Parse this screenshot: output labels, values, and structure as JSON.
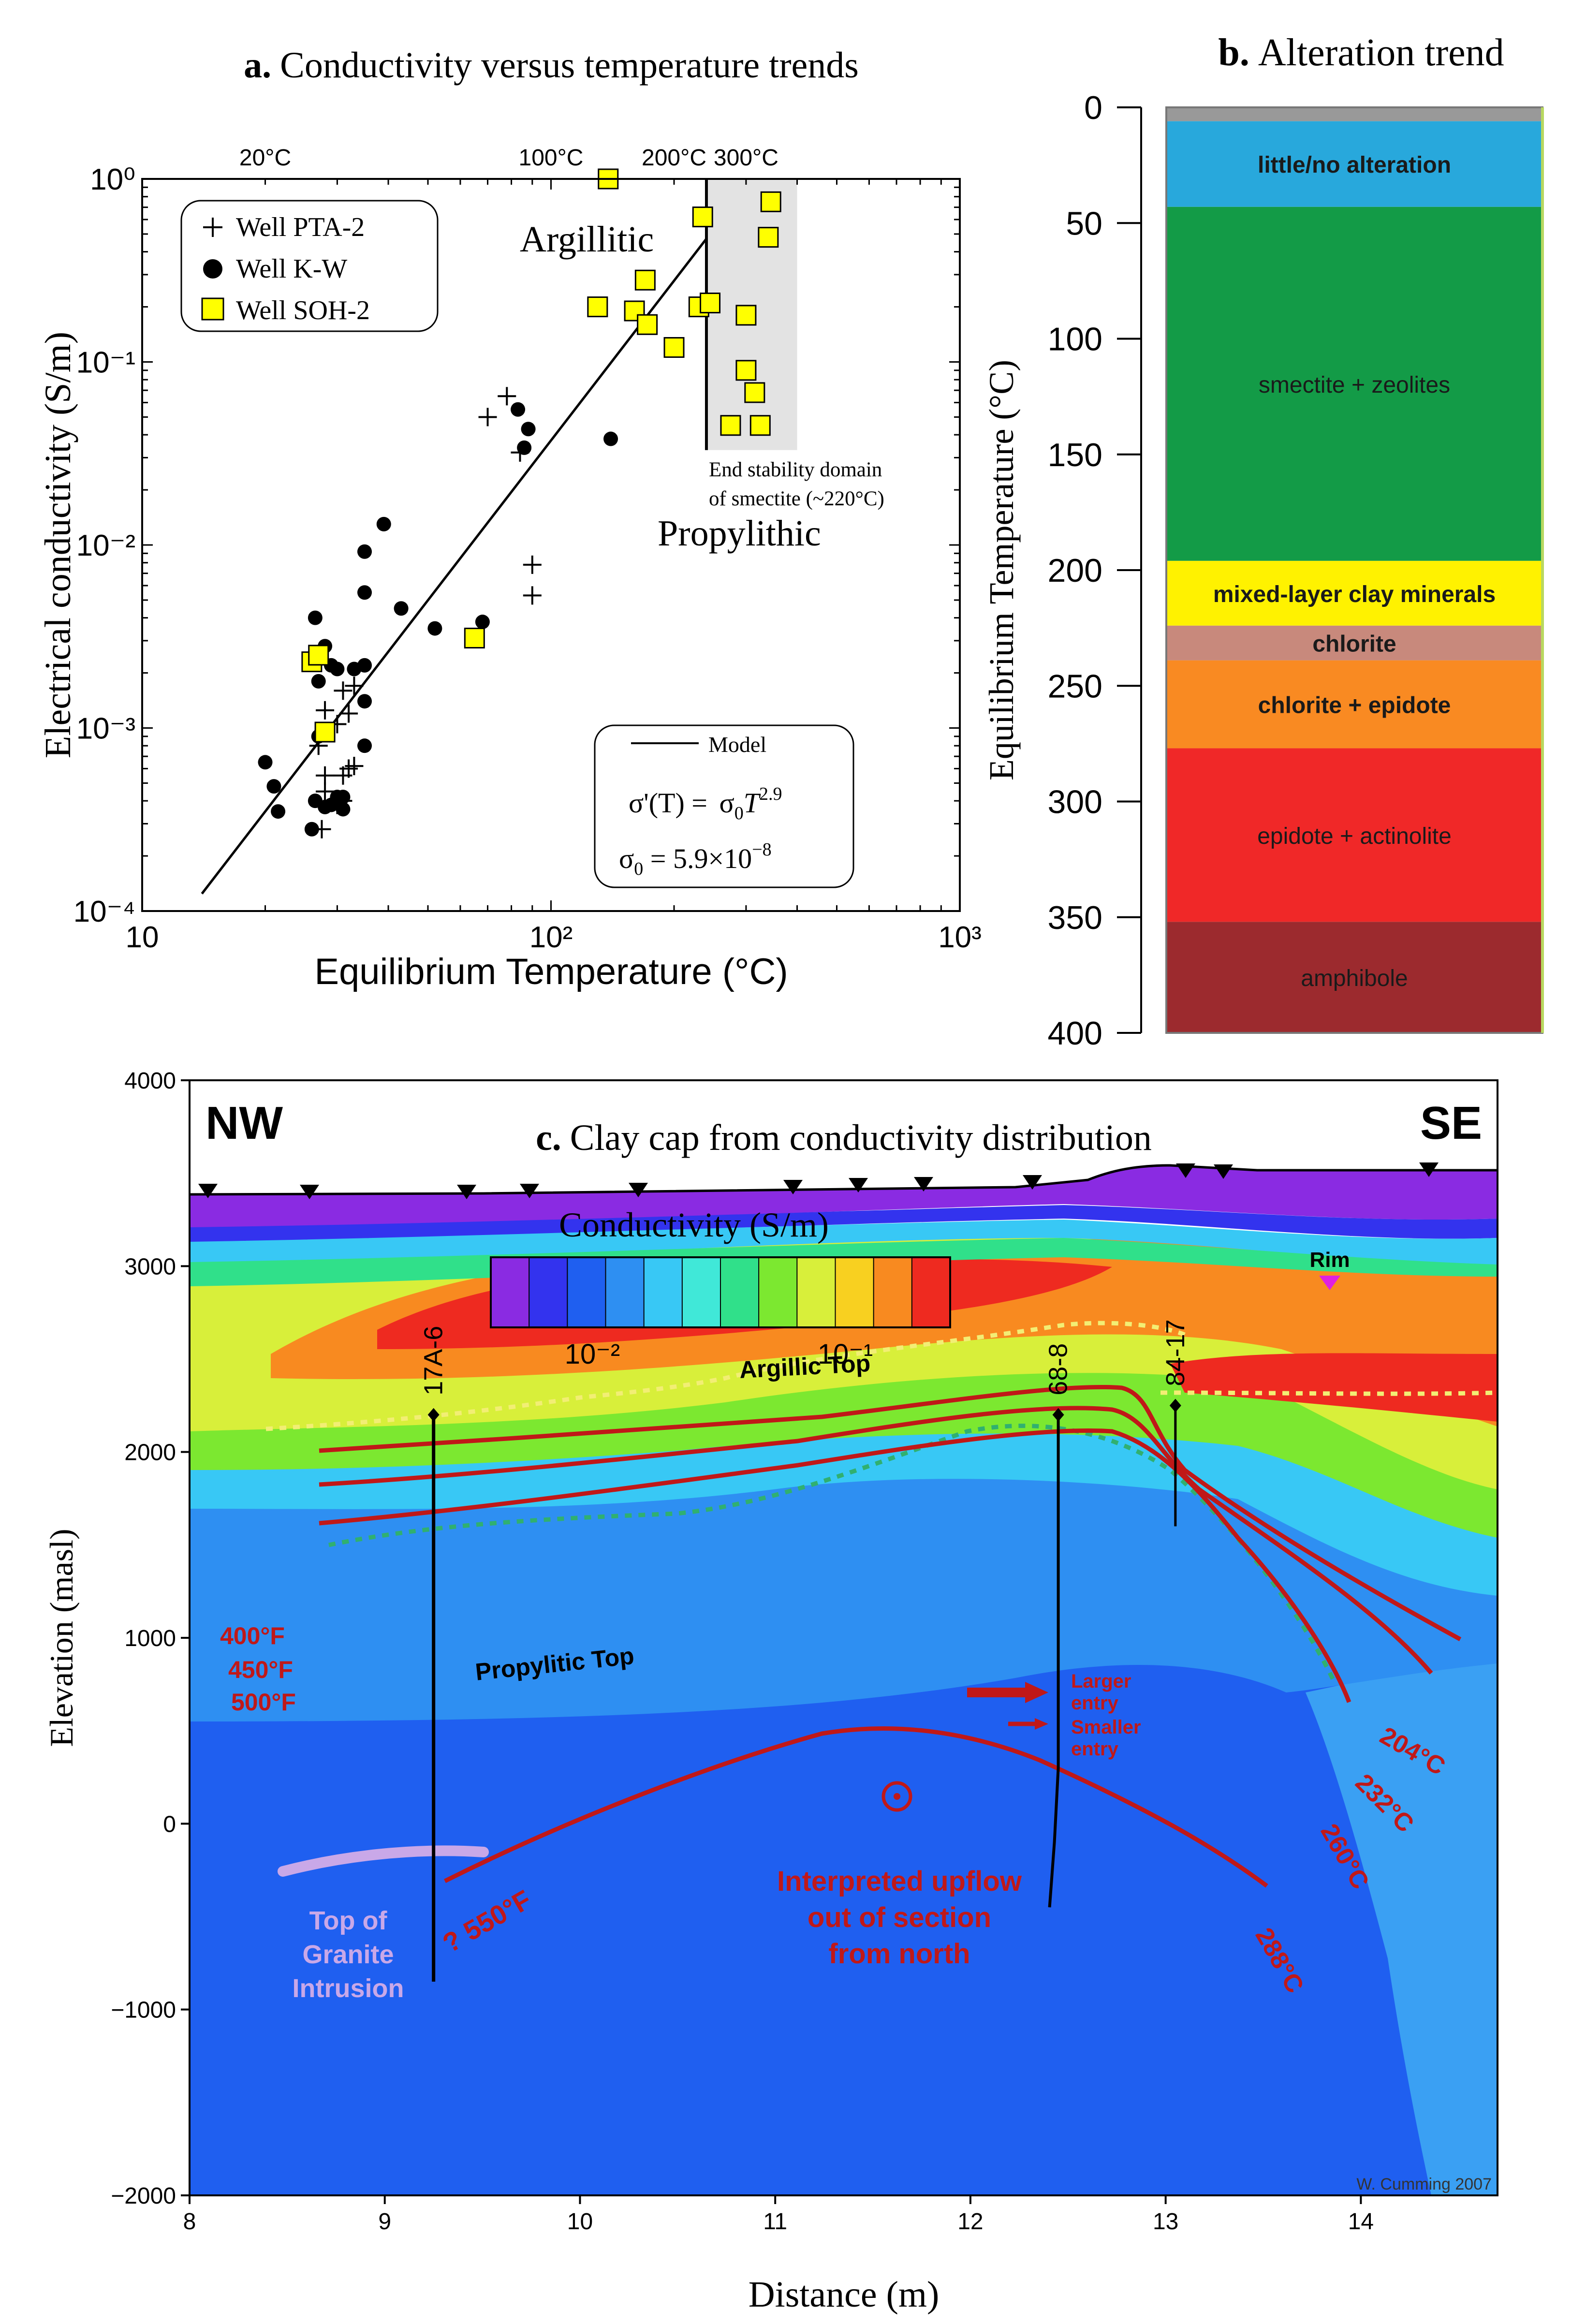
{
  "chart_data": [
    {
      "panel": "a",
      "type": "scatter",
      "title_letter": "a.",
      "title": "Conductivity versus temperature trends",
      "xlabel": "Equilibrium Temperature (°C)",
      "ylabel": "Electrical conductivity (S/m)",
      "xscale": "log",
      "yscale": "log",
      "xlim": [
        10,
        1000
      ],
      "ylim": [
        0.0001,
        1
      ],
      "x_tick_labels": [
        "10",
        "10²",
        "10³"
      ],
      "y_tick_labels": [
        "10⁻⁴",
        "10⁻³",
        "10⁻²",
        "10⁻¹",
        "10⁰"
      ],
      "top_labels": [
        {
          "text": "20°C",
          "at": 20
        },
        {
          "text": "100°C",
          "at": 100
        },
        {
          "text": "200°C",
          "at": 200
        },
        {
          "text": "300°C",
          "at": 300
        }
      ],
      "legend": [
        {
          "name": "Well PTA-2",
          "marker": "plus",
          "color": "#000000"
        },
        {
          "name": "Well K-W",
          "marker": "dot",
          "color": "#000000"
        },
        {
          "name": "Well SOH-2",
          "marker": "square",
          "color": "#ffff00"
        }
      ],
      "series": [
        {
          "name": "Well PTA-2",
          "points": [
            [
              27.5,
              0.00028
            ],
            [
              28,
              0.00045
            ],
            [
              28,
              0.00055
            ],
            [
              27,
              0.0008
            ],
            [
              28,
              0.00125
            ],
            [
              30,
              0.00105
            ],
            [
              31,
              0.0016
            ],
            [
              32,
              0.0012
            ],
            [
              33,
              0.0017
            ],
            [
              32,
              0.0006
            ],
            [
              31,
              0.00055
            ],
            [
              33,
              0.00062
            ],
            [
              30,
              0.00038
            ],
            [
              31,
              0.0004
            ],
            [
              70,
              0.05
            ],
            [
              78,
              0.065
            ],
            [
              84,
              0.032
            ],
            [
              90,
              0.0078
            ],
            [
              90,
              0.0053
            ]
          ]
        },
        {
          "name": "Well K-W",
          "points": [
            [
              20,
              0.00065
            ],
            [
              21,
              0.00048
            ],
            [
              21.5,
              0.00035
            ],
            [
              26,
              0.00028
            ],
            [
              26.5,
              0.0004
            ],
            [
              28,
              0.00037
            ],
            [
              29,
              0.00038
            ],
            [
              31,
              0.00036
            ],
            [
              30,
              0.00042
            ],
            [
              31,
              0.00042
            ],
            [
              27,
              0.0009
            ],
            [
              30,
              0.0021
            ],
            [
              27,
              0.0018
            ],
            [
              26.5,
              0.004
            ],
            [
              28,
              0.0028
            ],
            [
              29,
              0.0022
            ],
            [
              33,
              0.0021
            ],
            [
              35,
              0.0022
            ],
            [
              35,
              0.0014
            ],
            [
              35,
              0.0008
            ],
            [
              43,
              0.0045
            ],
            [
              35,
              0.0055
            ],
            [
              35,
              0.0092
            ],
            [
              39,
              0.013
            ],
            [
              52,
              0.0035
            ],
            [
              68,
              0.0038
            ],
            [
              83,
              0.055
            ],
            [
              88,
              0.043
            ],
            [
              86,
              0.034
            ],
            [
              140,
              0.038
            ]
          ]
        },
        {
          "name": "Well SOH-2",
          "points": [
            [
              26,
              0.0023
            ],
            [
              27,
              0.0025
            ],
            [
              28,
              0.00095
            ],
            [
              65,
              0.0031
            ],
            [
              138,
              1.0
            ],
            [
              130,
              0.2
            ],
            [
              160,
              0.19
            ],
            [
              172,
              0.16
            ],
            [
              170,
              0.28
            ],
            [
              200,
              0.12
            ],
            [
              230,
              0.2
            ],
            [
              245,
              0.21
            ],
            [
              235,
              0.62
            ],
            [
              300,
              0.18
            ],
            [
              300,
              0.09
            ],
            [
              315,
              0.068
            ],
            [
              275,
              0.045
            ],
            [
              325,
              0.045
            ],
            [
              345,
              0.75
            ],
            [
              340,
              0.48
            ]
          ]
        }
      ],
      "model": {
        "legend_label": "Model",
        "equation_lhs": "σ'(T) = ",
        "equation_rhs": "σ",
        "equation_sub": "0",
        "equation_T": "T",
        "equation_exp": "2.9",
        "sigma0_lhs": "σ",
        "sigma0_sub": "0",
        "sigma0_rhs": " = 5.9×10",
        "sigma0_exp": "−8",
        "sigma0": 5.9e-08,
        "exponent": 2.9,
        "line_from_T": 14,
        "line_to_T": 240
      },
      "smectite_limit_T": 240,
      "shaded_T_range": [
        240,
        400
      ],
      "shaded_sigma_range": [
        0.033,
        1
      ],
      "annotations": {
        "argillitic": "Argillitic",
        "propylithic": "Propylithic",
        "end_stability_line1": "End stability domain",
        "end_stability_line2": "of smectite (~220°C)"
      }
    },
    {
      "panel": "b",
      "type": "bar",
      "title_letter": "b.",
      "title": "Alteration trend",
      "ylabel": "Equilibrium Temperature (°C)",
      "ylim": [
        0,
        400
      ],
      "y_ticks": [
        0,
        50,
        100,
        150,
        200,
        250,
        300,
        350,
        400
      ],
      "zones": [
        {
          "label": "",
          "from": 0,
          "to": 6,
          "color": "#999999"
        },
        {
          "label": "little/no alteration",
          "from": 6,
          "to": 43,
          "color": "#28a8dc"
        },
        {
          "label": "smectite + zeolites",
          "from": 43,
          "to": 196,
          "color": "#139b47"
        },
        {
          "label": "mixed-layer clay minerals",
          "from": 196,
          "to": 224,
          "color": "#fff200"
        },
        {
          "label": "chlorite",
          "from": 224,
          "to": 239,
          "color": "#c8897c"
        },
        {
          "label": "chlorite + epidote",
          "from": 239,
          "to": 277,
          "color": "#f98a22"
        },
        {
          "label": "epidote + actinolite",
          "from": 277,
          "to": 352,
          "color": "#f02828"
        },
        {
          "label": "amphibole",
          "from": 352,
          "to": 400,
          "color": "#9c2a2e"
        }
      ]
    },
    {
      "panel": "c",
      "type": "heatmap",
      "title_letter": "c.",
      "title": "Clay cap from conductivity distribution",
      "xlabel": "Distance (m)",
      "ylabel": "Elevation (masl)",
      "xlim": [
        8,
        14.7
      ],
      "ylim": [
        -2000,
        4000
      ],
      "x_ticks": [
        8,
        9,
        10,
        11,
        12,
        13,
        14
      ],
      "y_ticks": [
        -2000,
        -1000,
        0,
        1000,
        2000,
        3000,
        4000
      ],
      "y_tick_labels": [
        "−2000",
        "−1000",
        "0",
        "1000",
        "2000",
        "3000",
        "4000"
      ],
      "nw_label": "NW",
      "se_label": "SE",
      "colorbar": {
        "title": "Conductivity (S/m)",
        "tick_labels": [
          "10⁻²",
          "10⁻¹"
        ],
        "colors": [
          "#8a2be2",
          "#3333ee",
          "#1f5ff0",
          "#2e8ff2",
          "#38c8f5",
          "#40e8d8",
          "#30e08a",
          "#7ce830",
          "#d8ef3a",
          "#f8d020",
          "#f88a20",
          "#ee2a20"
        ]
      },
      "wells": [
        {
          "name": "17A-6",
          "x": 9.25,
          "top": 2200,
          "bottom": -850
        },
        {
          "name": "68-8",
          "x": 12.45,
          "top": 2200,
          "bottom": -450
        },
        {
          "name": "84-17",
          "x": 13.05,
          "top": 2250,
          "bottom": 1600
        }
      ],
      "annotations": {
        "argillic_top": "Argillic Top",
        "propylitic_top": "Propylitic Top",
        "t400f": "400°F",
        "t450f": "450°F",
        "t500f": "500°F",
        "t550f": "? 550°F",
        "t204c": "204°C",
        "t232c": "232°C",
        "t260c": "260°C",
        "t288c": "288°C",
        "larger_entry_1": "Larger",
        "larger_entry_2": "entry",
        "smaller_entry_1": "Smaller",
        "smaller_entry_2": "entry",
        "upflow_1": "Interpreted upflow",
        "upflow_2": "out of section",
        "upflow_3": "from north",
        "granite_1": "Top of",
        "granite_2": "Granite",
        "granite_3": "Intrusion",
        "rim": "Rim",
        "credit": "W. Cumming 2007"
      }
    }
  ]
}
